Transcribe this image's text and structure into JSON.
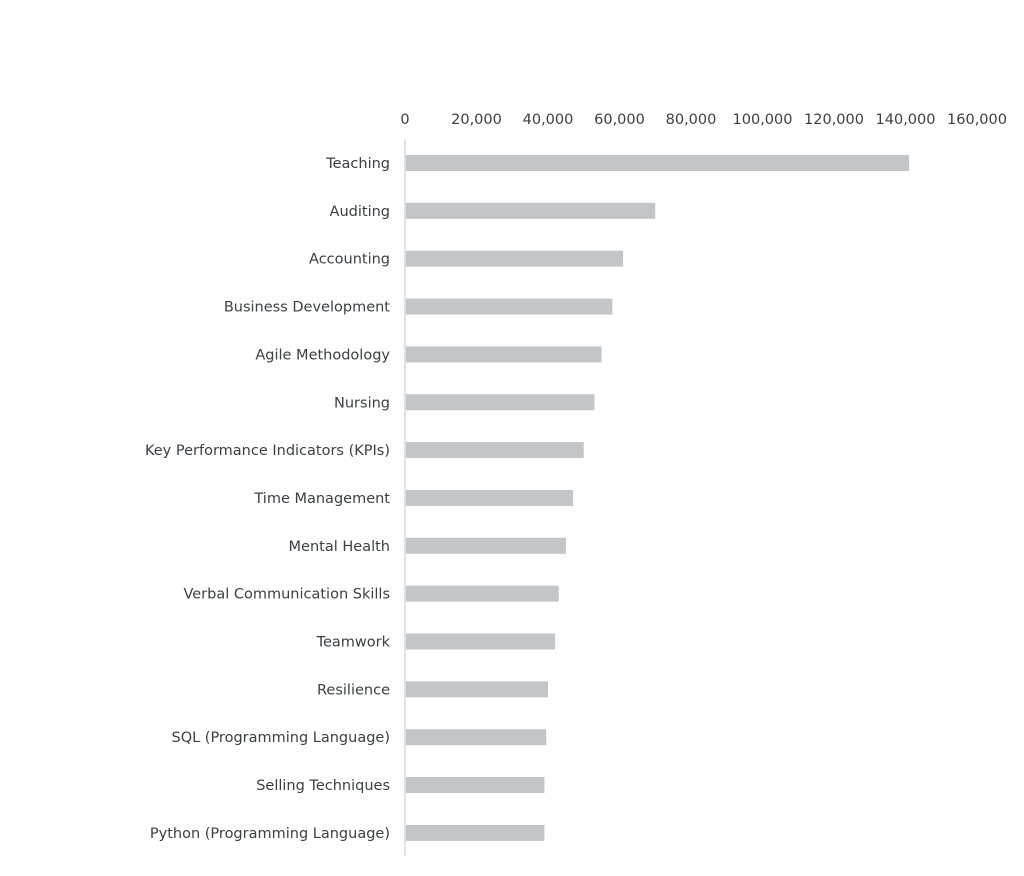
{
  "chart_data": {
    "type": "bar",
    "orientation": "horizontal",
    "title": "",
    "xlabel": "",
    "ylabel": "",
    "categories": [
      "Teaching",
      "Auditing",
      "Accounting",
      "Business Development",
      "Agile Methodology",
      "Nursing",
      "Key Performance Indicators (KPIs)",
      "Time Management",
      "Mental Health",
      "Verbal Communication Skills",
      "Teamwork",
      "Resilience",
      "SQL (Programming Language)",
      "Selling Techniques",
      "Python (Programming Language)"
    ],
    "values": [
      141000,
      70000,
      61000,
      58000,
      55000,
      53000,
      50000,
      47000,
      45000,
      43000,
      42000,
      40000,
      39500,
      39000,
      39000
    ],
    "xlim": [
      0,
      160000
    ],
    "xticks": [
      0,
      20000,
      40000,
      60000,
      80000,
      100000,
      120000,
      140000,
      160000
    ],
    "xtick_labels": [
      "0",
      "20,000",
      "40,000",
      "60,000",
      "80,000",
      "100,000",
      "120,000",
      "140,000",
      "160,000"
    ],
    "x_axis_position": "top",
    "grid": false,
    "legend": "none",
    "bar_color": "#c3c6c9",
    "axis_color": "#d9d9d9",
    "text_color": "#3c4043"
  }
}
